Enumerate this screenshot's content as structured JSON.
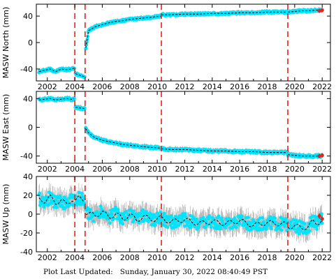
{
  "chart_data": [
    {
      "type": "scatter",
      "ylabel": "MASW North (mm)",
      "xlim": [
        2001.2,
        2022.6
      ],
      "ylim": [
        -58,
        58
      ],
      "yticks": [
        -40,
        0,
        40
      ],
      "xticks": [
        2002,
        2004,
        2006,
        2008,
        2010,
        2012,
        2014,
        2016,
        2018,
        2020,
        2022
      ],
      "grid": false,
      "colors": {
        "points": "#00e5ff",
        "errorbars": "#b4b4b4",
        "model": "#000000",
        "offset_lines": "#e8221c",
        "recent": "#e8221c"
      },
      "offset_lines_x": [
        2004.0,
        2004.75,
        2010.3,
        2019.5
      ],
      "series": [
        {
          "x": [
            2001.4,
            2001.8,
            2002.2,
            2002.6,
            2003.0,
            2003.4,
            2003.8,
            2003.99
          ],
          "values": [
            -44,
            -42,
            -40,
            -44,
            -40,
            -41,
            -40,
            -38
          ]
        },
        {
          "x": [
            2004.05,
            2004.3,
            2004.74
          ],
          "values": [
            -47,
            -49,
            -52
          ]
        },
        {
          "x": [
            2004.8,
            2005.0,
            2005.5,
            2006.0,
            2006.5,
            2007.0,
            2007.5,
            2008.0,
            2008.5,
            2009.0,
            2009.5,
            2010.29
          ],
          "values": [
            -8,
            18,
            24,
            27,
            30,
            32,
            33,
            35,
            36,
            37,
            38,
            40
          ]
        },
        {
          "x": [
            2010.31,
            2011.0,
            2012.0,
            2013.0,
            2014.0,
            2015.0,
            2016.0,
            2017.0,
            2018.0,
            2019.49
          ],
          "values": [
            42,
            42,
            43,
            43,
            44,
            44,
            45,
            45,
            46,
            46
          ]
        },
        {
          "x": [
            2019.51,
            2020.0,
            2020.5,
            2021.0,
            2021.5,
            2022.0
          ],
          "values": [
            46,
            47,
            48,
            48,
            49,
            49
          ]
        }
      ],
      "recent_x": [
        2021.8,
        2022.0
      ],
      "recent_values": [
        48,
        49
      ]
    },
    {
      "type": "scatter",
      "ylabel": "MASW East (mm)",
      "xlim": [
        2001.2,
        2022.6
      ],
      "ylim": [
        -50,
        50
      ],
      "yticks": [
        -40,
        0,
        40
      ],
      "xticks": [
        2002,
        2004,
        2006,
        2008,
        2010,
        2012,
        2014,
        2016,
        2018,
        2020,
        2022
      ],
      "grid": false,
      "colors": {
        "points": "#00e5ff",
        "errorbars": "#b4b4b4",
        "model": "#000000",
        "offset_lines": "#e8221c",
        "recent": "#e8221c"
      },
      "offset_lines_x": [
        2004.0,
        2004.75,
        2010.3,
        2019.5
      ],
      "series": [
        {
          "x": [
            2001.4,
            2001.8,
            2002.2,
            2002.6,
            2003.0,
            2003.4,
            2003.8,
            2003.99
          ],
          "values": [
            38,
            39,
            40,
            38,
            39,
            40,
            39,
            40
          ]
        },
        {
          "x": [
            2004.05,
            2004.3,
            2004.74
          ],
          "values": [
            28,
            27,
            26
          ]
        },
        {
          "x": [
            2004.8,
            2005.0,
            2005.5,
            2006.0,
            2006.5,
            2007.0,
            2007.5,
            2008.0,
            2008.5,
            2009.0,
            2009.5,
            2010.29
          ],
          "values": [
            -2,
            -8,
            -15,
            -18,
            -20,
            -22,
            -24,
            -25,
            -26,
            -27,
            -28,
            -29
          ]
        },
        {
          "x": [
            2010.31,
            2011.0,
            2012.0,
            2013.0,
            2014.0,
            2015.0,
            2016.0,
            2017.0,
            2018.0,
            2019.49
          ],
          "values": [
            -30,
            -31,
            -31,
            -32,
            -33,
            -33,
            -34,
            -34,
            -35,
            -35
          ]
        },
        {
          "x": [
            2019.51,
            2020.0,
            2020.5,
            2021.0,
            2021.5,
            2022.0
          ],
          "values": [
            -38,
            -39,
            -40,
            -40,
            -40,
            -40
          ]
        }
      ],
      "recent_x": [
        2021.8,
        2022.0
      ],
      "recent_values": [
        -40,
        -39
      ]
    },
    {
      "type": "scatter",
      "ylabel": "MASW Up (mm)",
      "xlim": [
        2001.2,
        2022.6
      ],
      "ylim": [
        -40,
        40
      ],
      "yticks": [
        -40,
        -20,
        0,
        20,
        40
      ],
      "xticks": [
        2002,
        2004,
        2006,
        2008,
        2010,
        2012,
        2014,
        2016,
        2018,
        2020,
        2022
      ],
      "grid": false,
      "colors": {
        "points": "#00e5ff",
        "errorbars": "#b4b4b4",
        "model": "#000000",
        "offset_lines": "#e8221c",
        "recent": "#e8221c"
      },
      "offset_lines_x": [
        2004.0,
        2004.75,
        2010.3,
        2019.5
      ],
      "series": [
        {
          "x": [
            2001.4,
            2001.8,
            2002.2,
            2002.6,
            2003.0,
            2003.4,
            2003.8,
            2003.99
          ],
          "values": [
            16,
            14,
            18,
            12,
            15,
            10,
            16,
            14
          ]
        },
        {
          "x": [
            2004.05,
            2004.3,
            2004.74
          ],
          "values": [
            14,
            17,
            15
          ]
        },
        {
          "x": [
            2004.8,
            2005.5,
            2006.0,
            2006.5,
            2007.0,
            2007.5,
            2008.0,
            2008.5,
            2009.0,
            2009.5,
            2010.29
          ],
          "values": [
            2,
            -2,
            3,
            -4,
            1,
            -6,
            0,
            -7,
            -2,
            -6,
            -4
          ]
        },
        {
          "x": [
            2010.31,
            2011.0,
            2012.0,
            2013.0,
            2014.0,
            2015.0,
            2016.0,
            2017.0,
            2018.0,
            2019.49
          ],
          "values": [
            -5,
            -8,
            -6,
            -10,
            -8,
            -10,
            -7,
            -12,
            -9,
            -11
          ]
        },
        {
          "x": [
            2019.51,
            2020.0,
            2020.5,
            2021.0,
            2021.3,
            2021.6,
            2022.0
          ],
          "values": [
            -14,
            -12,
            -15,
            -13,
            -8,
            -10,
            -6
          ]
        }
      ],
      "recent_x": [
        2021.8,
        2022.0
      ],
      "recent_values": [
        -2,
        -5
      ]
    }
  ],
  "footer": {
    "label": "Plot Last Updated:",
    "timestamp": "Sunday, January 30, 2022 08:40:49 PST"
  }
}
